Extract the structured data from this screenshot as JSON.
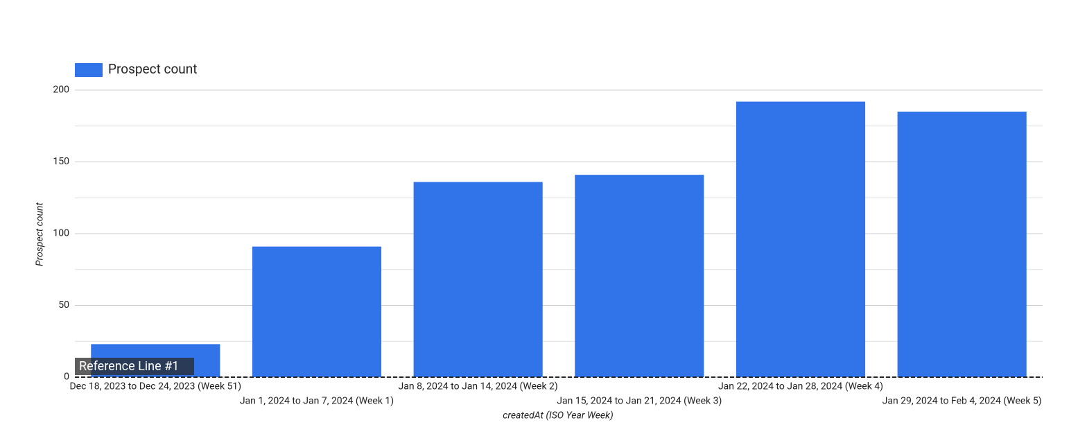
{
  "chart_data": {
    "type": "bar",
    "x_label": "createdAt (ISO Year Week)",
    "y_label": "Prospect count",
    "categories": [
      "Dec 18, 2023 to Dec 24, 2023 (Week 51)",
      "Jan 1, 2024 to Jan 7, 2024 (Week 1)",
      "Jan 8, 2024 to Jan 14, 2024 (Week 2)",
      "Jan 15, 2024 to Jan 21, 2024 (Week 3)",
      "Jan 22, 2024 to Jan 28, 2024 (Week 4)",
      "Jan 29, 2024 to Feb 4, 2024 (Week 5)"
    ],
    "series": [
      {
        "name": "Prospect count",
        "color": "#3173e8",
        "values": [
          23,
          91,
          136,
          141,
          192,
          185
        ]
      }
    ],
    "ylim": [
      0,
      200
    ],
    "yticks": [
      0,
      50,
      100,
      150,
      200
    ],
    "minor_yticks": [
      25,
      75,
      125,
      175
    ],
    "grid": true,
    "legend": "top-left",
    "reference_line": {
      "label": "Reference Line #1",
      "value": 0
    }
  }
}
